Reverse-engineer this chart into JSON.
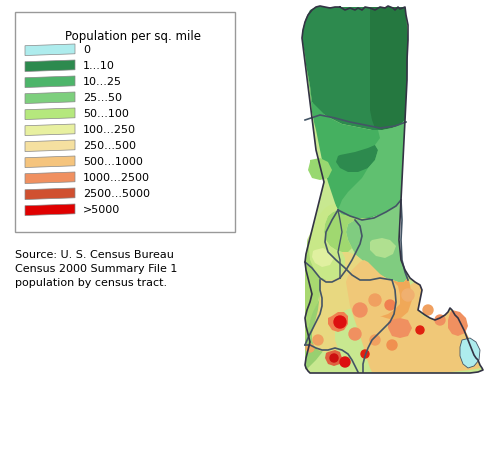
{
  "legend_title": "Population per sq. mile",
  "legend_entries": [
    {
      "label": "0",
      "color": "#aeeced"
    },
    {
      "label": "1...10",
      "color": "#2d8a4e"
    },
    {
      "label": "10...25",
      "color": "#4db56a"
    },
    {
      "label": "25...50",
      "color": "#7dcf7d"
    },
    {
      "label": "50...100",
      "color": "#b5e87d"
    },
    {
      "label": "100...250",
      "color": "#e8f0a0"
    },
    {
      "label": "250...500",
      "color": "#f5e0a0"
    },
    {
      "label": "500...1000",
      "color": "#f5c47d"
    },
    {
      "label": "1000...2500",
      "color": "#f09060"
    },
    {
      "label": "2500...5000",
      "color": "#d05030"
    },
    {
      "label": ">5000",
      "color": "#e00000"
    }
  ],
  "source_text": "Source: U. S. Census Bureau\nCensus 2000 Summary File 1\npopulation by census tract.",
  "bg_color": "#ffffff"
}
